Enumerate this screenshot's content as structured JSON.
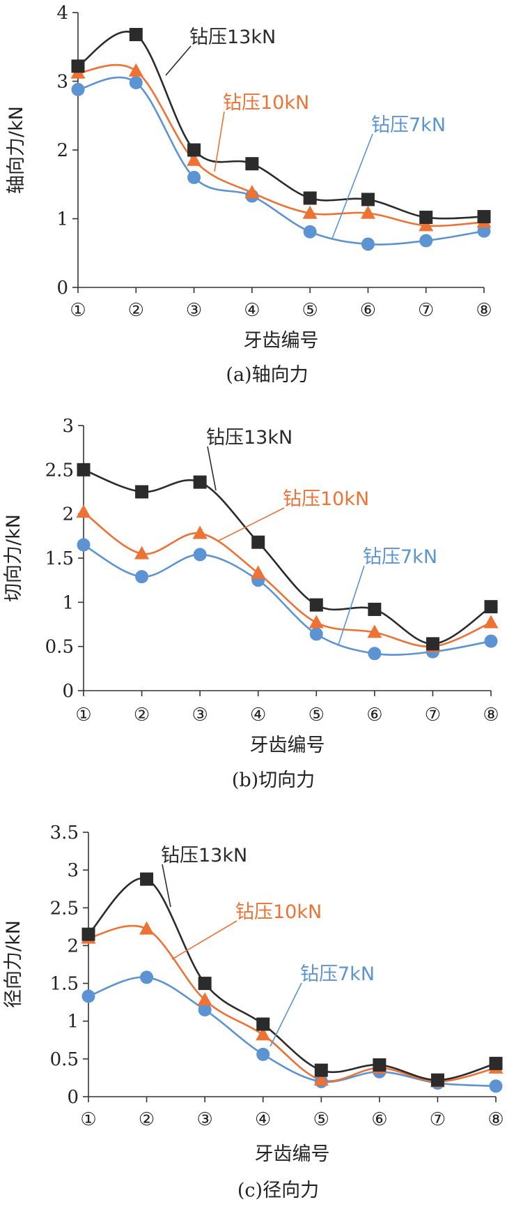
{
  "colors": {
    "s13": "#2b2b2b",
    "s10": "#ed7233",
    "s7": "#5b93d3",
    "axis": "#333333"
  },
  "chart_data": [
    {
      "type": "line",
      "caption": "(a)轴向力",
      "xlabel": "牙齿编号",
      "ylabel": "轴向力/kN",
      "categories": [
        "①",
        "②",
        "③",
        "④",
        "⑤",
        "⑥",
        "⑦",
        "⑧"
      ],
      "yticks": [
        "0",
        "1",
        "2",
        "3",
        "4"
      ],
      "ylim": [
        0,
        4
      ],
      "series": [
        {
          "name": "钻压13kN",
          "marker": "square",
          "values": [
            3.22,
            3.68,
            2.0,
            1.8,
            1.3,
            1.28,
            1.02,
            1.03
          ]
        },
        {
          "name": "钻压10kN",
          "marker": "triangle",
          "values": [
            3.12,
            3.15,
            1.85,
            1.38,
            1.08,
            1.08,
            0.9,
            0.95
          ]
        },
        {
          "name": "钻压7kN",
          "marker": "circle",
          "values": [
            2.88,
            2.98,
            1.6,
            1.33,
            0.81,
            0.63,
            0.68,
            0.82
          ]
        }
      ]
    },
    {
      "type": "line",
      "caption": "(b)切向力",
      "xlabel": "牙齿编号",
      "ylabel": "切向力/kN",
      "categories": [
        "①",
        "②",
        "③",
        "④",
        "⑤",
        "⑥",
        "⑦",
        "⑧"
      ],
      "yticks": [
        "0",
        "0.5",
        "1",
        "1.5",
        "2",
        "2.5",
        "3"
      ],
      "ylim": [
        0,
        3
      ],
      "series": [
        {
          "name": "钻压13kN",
          "marker": "square",
          "values": [
            2.5,
            2.25,
            2.36,
            1.68,
            0.97,
            0.92,
            0.53,
            0.95
          ]
        },
        {
          "name": "钻压10kN",
          "marker": "triangle",
          "values": [
            2.02,
            1.55,
            1.78,
            1.33,
            0.77,
            0.66,
            0.5,
            0.77
          ]
        },
        {
          "name": "钻压7kN",
          "marker": "circle",
          "values": [
            1.65,
            1.29,
            1.54,
            1.25,
            0.64,
            0.42,
            0.44,
            0.56
          ]
        }
      ]
    },
    {
      "type": "line",
      "caption": "(c)径向力",
      "xlabel": "牙齿编号",
      "ylabel": "径向力/kN",
      "categories": [
        "①",
        "②",
        "③",
        "④",
        "⑤",
        "⑥",
        "⑦",
        "⑧"
      ],
      "yticks": [
        "0",
        "0.5",
        "1",
        "1.5",
        "2",
        "2.5",
        "3",
        "3.5"
      ],
      "ylim": [
        0,
        3.5
      ],
      "series": [
        {
          "name": "钻压13kN",
          "marker": "square",
          "values": [
            2.15,
            2.88,
            1.5,
            0.96,
            0.35,
            0.42,
            0.22,
            0.44
          ]
        },
        {
          "name": "钻压10kN",
          "marker": "triangle",
          "values": [
            2.1,
            2.22,
            1.28,
            0.82,
            0.22,
            0.38,
            0.2,
            0.38
          ]
        },
        {
          "name": "钻压7kN",
          "marker": "circle",
          "values": [
            1.33,
            1.58,
            1.15,
            0.56,
            0.2,
            0.33,
            0.18,
            0.14
          ]
        }
      ]
    }
  ]
}
